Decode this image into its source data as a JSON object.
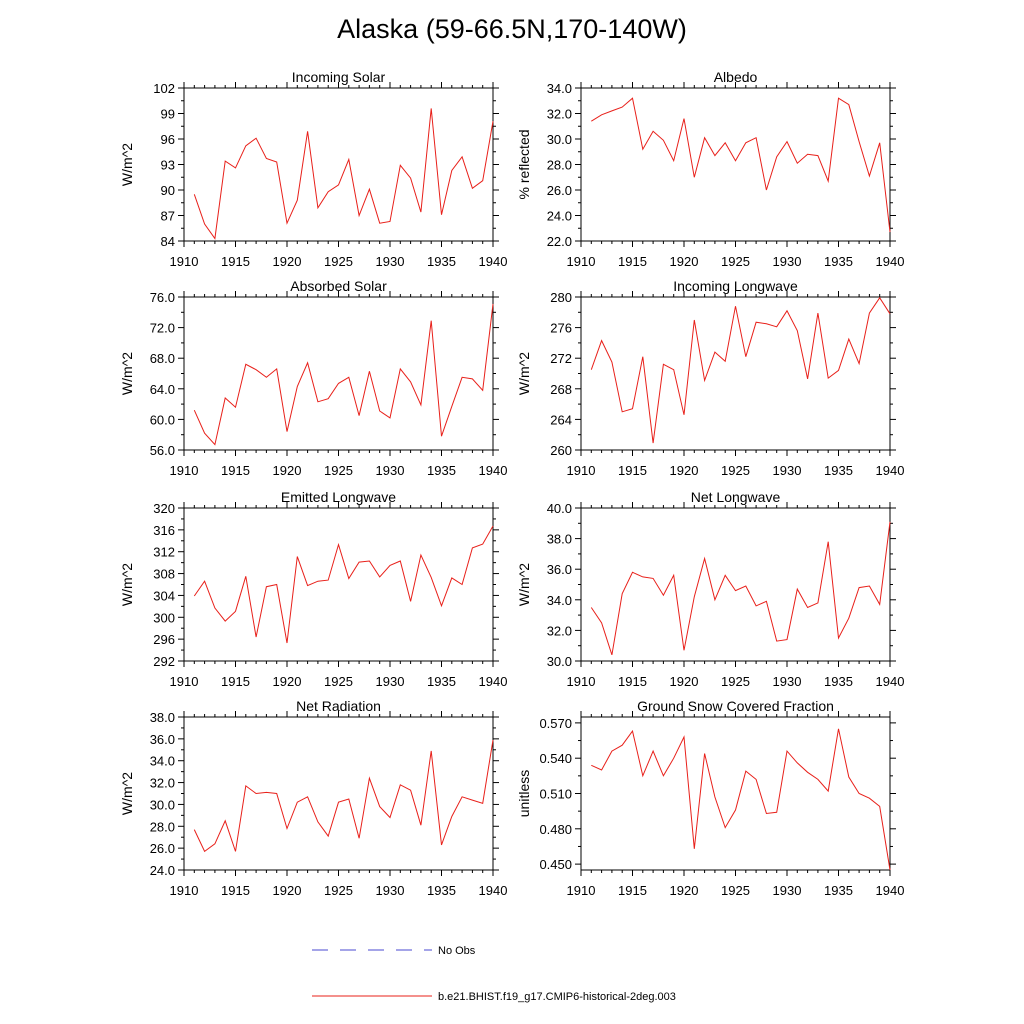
{
  "figure": {
    "title": "Alaska (59-66.5N,170-140W)",
    "legend": [
      {
        "label": "No Obs",
        "color": "#4a4ad0",
        "style": "dashed"
      },
      {
        "label": "b.e21.BHIST.f19_g17.CMIP6-historical-2deg.003",
        "color": "#e8201a",
        "style": "solid"
      }
    ]
  },
  "colors": {
    "series": "#e8201a",
    "obs": "#4a4ad0"
  },
  "chart_data": [
    {
      "type": "line",
      "title": "Incoming Solar",
      "xlabel": "",
      "ylabel": "W/m^2",
      "xlim": [
        1910,
        1940
      ],
      "ylim": [
        84,
        102
      ],
      "xticks": [
        "1910",
        "1915",
        "1920",
        "1925",
        "1930",
        "1935",
        "1940"
      ],
      "yticks": [
        "84",
        "87",
        "90",
        "93",
        "96",
        "99",
        "102"
      ],
      "x": [
        1911,
        1912,
        1913,
        1914,
        1915,
        1916,
        1917,
        1918,
        1919,
        1920,
        1921,
        1922,
        1923,
        1924,
        1925,
        1926,
        1927,
        1928,
        1929,
        1930,
        1931,
        1932,
        1933,
        1934,
        1935,
        1936,
        1937,
        1938,
        1939,
        1940
      ],
      "series": [
        {
          "values": [
            89.5,
            86.0,
            84.3,
            93.4,
            92.6,
            95.2,
            96.1,
            93.7,
            93.3,
            86.1,
            88.8,
            96.9,
            87.9,
            89.8,
            90.6,
            93.6,
            87.0,
            90.1,
            86.1,
            86.3,
            92.9,
            91.4,
            87.4,
            99.6,
            87.1,
            92.3,
            93.9,
            90.2,
            91.1,
            98.1
          ]
        }
      ]
    },
    {
      "type": "line",
      "title": "Albedo",
      "xlabel": "",
      "ylabel": "% reflected",
      "xlim": [
        1910,
        1940
      ],
      "ylim": [
        22,
        34
      ],
      "xticks": [
        "1910",
        "1915",
        "1920",
        "1925",
        "1930",
        "1935",
        "1940"
      ],
      "yticks": [
        "22.0",
        "24.0",
        "26.0",
        "28.0",
        "30.0",
        "32.0",
        "34.0"
      ],
      "x": [
        1911,
        1912,
        1913,
        1914,
        1915,
        1916,
        1917,
        1918,
        1919,
        1920,
        1921,
        1922,
        1923,
        1924,
        1925,
        1926,
        1927,
        1928,
        1929,
        1930,
        1931,
        1932,
        1933,
        1934,
        1935,
        1936,
        1937,
        1938,
        1939,
        1940
      ],
      "series": [
        {
          "values": [
            31.4,
            31.9,
            32.2,
            32.5,
            33.2,
            29.2,
            30.6,
            29.9,
            28.3,
            31.6,
            27.0,
            30.1,
            28.7,
            29.7,
            28.3,
            29.7,
            30.1,
            26.0,
            28.6,
            29.8,
            28.1,
            28.8,
            28.7,
            26.7,
            33.2,
            32.7,
            29.8,
            27.1,
            29.7,
            22.7
          ]
        }
      ]
    },
    {
      "type": "line",
      "title": "Absorbed Solar",
      "xlabel": "",
      "ylabel": "W/m^2",
      "xlim": [
        1910,
        1940
      ],
      "ylim": [
        56,
        76
      ],
      "xticks": [
        "1910",
        "1915",
        "1920",
        "1925",
        "1930",
        "1935",
        "1940"
      ],
      "yticks": [
        "56.0",
        "60.0",
        "64.0",
        "68.0",
        "72.0",
        "76.0"
      ],
      "x": [
        1911,
        1912,
        1913,
        1914,
        1915,
        1916,
        1917,
        1918,
        1919,
        1920,
        1921,
        1922,
        1923,
        1924,
        1925,
        1926,
        1927,
        1928,
        1929,
        1930,
        1931,
        1932,
        1933,
        1934,
        1935,
        1936,
        1937,
        1938,
        1939,
        1940
      ],
      "series": [
        {
          "values": [
            61.2,
            58.2,
            56.7,
            62.8,
            61.6,
            67.2,
            66.5,
            65.5,
            66.6,
            58.4,
            64.3,
            67.4,
            62.3,
            62.7,
            64.7,
            65.5,
            60.5,
            66.3,
            61.1,
            60.2,
            66.6,
            64.9,
            61.9,
            72.9,
            57.8,
            61.7,
            65.5,
            65.3,
            63.8,
            75.1
          ]
        }
      ]
    },
    {
      "type": "line",
      "title": "Incoming Longwave",
      "xlabel": "",
      "ylabel": "W/m^2",
      "xlim": [
        1910,
        1940
      ],
      "ylim": [
        260,
        280
      ],
      "xticks": [
        "1910",
        "1915",
        "1920",
        "1925",
        "1930",
        "1935",
        "1940"
      ],
      "yticks": [
        "260",
        "264",
        "268",
        "272",
        "276",
        "280"
      ],
      "x": [
        1911,
        1912,
        1913,
        1914,
        1915,
        1916,
        1917,
        1918,
        1919,
        1920,
        1921,
        1922,
        1923,
        1924,
        1925,
        1926,
        1927,
        1928,
        1929,
        1930,
        1931,
        1932,
        1933,
        1934,
        1935,
        1936,
        1937,
        1938,
        1939,
        1940
      ],
      "series": [
        {
          "values": [
            270.5,
            274.3,
            271.5,
            265.0,
            265.4,
            272.2,
            260.9,
            271.2,
            270.5,
            264.6,
            277.0,
            269.1,
            272.8,
            271.6,
            278.8,
            272.2,
            276.7,
            276.5,
            276.1,
            278.2,
            275.6,
            269.3,
            277.9,
            269.4,
            270.4,
            274.5,
            271.3,
            277.9,
            279.9,
            277.8
          ]
        }
      ]
    },
    {
      "type": "line",
      "title": "Emitted Longwave",
      "xlabel": "",
      "ylabel": "W/m^2",
      "xlim": [
        1910,
        1940
      ],
      "ylim": [
        292,
        320
      ],
      "xticks": [
        "1910",
        "1915",
        "1920",
        "1925",
        "1930",
        "1935",
        "1940"
      ],
      "yticks": [
        "292",
        "296",
        "300",
        "304",
        "308",
        "312",
        "316",
        "320"
      ],
      "x": [
        1911,
        1912,
        1913,
        1914,
        1915,
        1916,
        1917,
        1918,
        1919,
        1920,
        1921,
        1922,
        1923,
        1924,
        1925,
        1926,
        1927,
        1928,
        1929,
        1930,
        1931,
        1932,
        1933,
        1934,
        1935,
        1936,
        1937,
        1938,
        1939,
        1940
      ],
      "series": [
        {
          "values": [
            303.9,
            306.6,
            301.7,
            299.3,
            301.1,
            307.5,
            296.4,
            305.6,
            306.0,
            295.3,
            311.1,
            305.8,
            306.6,
            306.8,
            313.3,
            307.1,
            310.1,
            310.3,
            307.4,
            309.5,
            310.3,
            302.9,
            311.4,
            307.3,
            302.1,
            307.2,
            306.0,
            312.7,
            313.4,
            316.7
          ]
        }
      ]
    },
    {
      "type": "line",
      "title": "Net Longwave",
      "xlabel": "",
      "ylabel": "W/m^2",
      "xlim": [
        1910,
        1940
      ],
      "ylim": [
        30,
        40
      ],
      "xticks": [
        "1910",
        "1915",
        "1920",
        "1925",
        "1930",
        "1935",
        "1940"
      ],
      "yticks": [
        "30.0",
        "32.0",
        "34.0",
        "36.0",
        "38.0",
        "40.0"
      ],
      "x": [
        1911,
        1912,
        1913,
        1914,
        1915,
        1916,
        1917,
        1918,
        1919,
        1920,
        1921,
        1922,
        1923,
        1924,
        1925,
        1926,
        1927,
        1928,
        1929,
        1930,
        1931,
        1932,
        1933,
        1934,
        1935,
        1936,
        1937,
        1938,
        1939,
        1940
      ],
      "series": [
        {
          "values": [
            33.5,
            32.5,
            30.4,
            34.4,
            35.8,
            35.5,
            35.4,
            34.3,
            35.6,
            30.7,
            34.2,
            36.7,
            34.0,
            35.6,
            34.6,
            34.9,
            33.6,
            33.9,
            31.3,
            31.4,
            34.7,
            33.5,
            33.8,
            37.8,
            31.5,
            32.8,
            34.8,
            34.9,
            33.7,
            39.1
          ]
        }
      ]
    },
    {
      "type": "line",
      "title": "Net Radiation",
      "xlabel": "",
      "ylabel": "W/m^2",
      "xlim": [
        1910,
        1940
      ],
      "ylim": [
        24,
        38
      ],
      "xticks": [
        "1910",
        "1915",
        "1920",
        "1925",
        "1930",
        "1935",
        "1940"
      ],
      "yticks": [
        "24.0",
        "26.0",
        "28.0",
        "30.0",
        "32.0",
        "34.0",
        "36.0",
        "38.0"
      ],
      "x": [
        1911,
        1912,
        1913,
        1914,
        1915,
        1916,
        1917,
        1918,
        1919,
        1920,
        1921,
        1922,
        1923,
        1924,
        1925,
        1926,
        1927,
        1928,
        1929,
        1930,
        1931,
        1932,
        1933,
        1934,
        1935,
        1936,
        1937,
        1938,
        1939,
        1940
      ],
      "series": [
        {
          "values": [
            27.7,
            25.7,
            26.4,
            28.5,
            25.7,
            31.7,
            31.0,
            31.1,
            31.0,
            27.8,
            30.2,
            30.7,
            28.4,
            27.1,
            30.2,
            30.5,
            26.9,
            32.4,
            29.8,
            28.8,
            31.8,
            31.3,
            28.1,
            34.9,
            26.3,
            28.9,
            30.7,
            30.4,
            30.1,
            35.9
          ]
        }
      ]
    },
    {
      "type": "line",
      "title": "Ground Snow Covered Fraction",
      "xlabel": "",
      "ylabel": "unitless",
      "xlim": [
        1910,
        1940
      ],
      "ylim": [
        0.445,
        0.575
      ],
      "xticks": [
        "1910",
        "1915",
        "1920",
        "1925",
        "1930",
        "1935",
        "1940"
      ],
      "yticks": [
        "0.450",
        "0.480",
        "0.510",
        "0.540",
        "0.570"
      ],
      "x": [
        1911,
        1912,
        1913,
        1914,
        1915,
        1916,
        1917,
        1918,
        1919,
        1920,
        1921,
        1922,
        1923,
        1924,
        1925,
        1926,
        1927,
        1928,
        1929,
        1930,
        1931,
        1932,
        1933,
        1934,
        1935,
        1936,
        1937,
        1938,
        1939,
        1940
      ],
      "series": [
        {
          "values": [
            0.534,
            0.53,
            0.546,
            0.551,
            0.563,
            0.525,
            0.546,
            0.525,
            0.54,
            0.558,
            0.463,
            0.544,
            0.507,
            0.481,
            0.496,
            0.529,
            0.522,
            0.493,
            0.494,
            0.546,
            0.536,
            0.528,
            0.522,
            0.512,
            0.565,
            0.524,
            0.51,
            0.506,
            0.499,
            0.445
          ]
        }
      ]
    }
  ]
}
